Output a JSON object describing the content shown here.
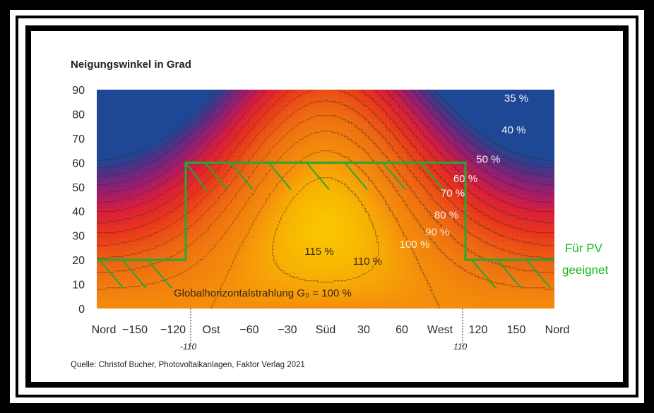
{
  "chart_data": {
    "type": "heatmap",
    "title": "Neigungswinkel in Grad",
    "y_ticks": [
      "90",
      "80",
      "70",
      "60",
      "50",
      "40",
      "30",
      "20",
      "10",
      "0"
    ],
    "x_ticks": [
      "Nord",
      "−150",
      "−120",
      "Ost",
      "−60",
      "−30",
      "Süd",
      "30",
      "60",
      "West",
      "120",
      "150",
      "Nord"
    ],
    "x_tick_values": [
      -180,
      -150,
      -120,
      -90,
      -60,
      -30,
      0,
      30,
      60,
      90,
      120,
      150,
      180
    ],
    "xlim": [
      -180,
      180
    ],
    "ylim": [
      0,
      90
    ],
    "contour_labels": [
      "35 %",
      "40 %",
      "50 %",
      "60 %",
      "70 %",
      "80 %",
      "90 %",
      "100 %",
      "110 %",
      "115 %"
    ],
    "contour_levels": [
      35,
      40,
      50,
      60,
      70,
      80,
      90,
      100,
      110,
      115
    ],
    "baseline_label": "Globalhorizontalstrahlung G₀ = 100 %",
    "suitable_region": {
      "label_line1": "Für PV",
      "label_line2": "geeignet",
      "azimuth_range": [
        -110,
        110
      ],
      "tilt_range_inner": [
        0,
        60
      ],
      "tilt_range_outer": [
        0,
        20
      ],
      "marker_left": "-110",
      "marker_right": "110",
      "color": "#22aa33"
    },
    "source": "Quelle: Christof Bucher, Photovoltaikanlagen, Faktor Verlag 2021",
    "colors": [
      "#f08a0c",
      "#f6b800",
      "#ffe617",
      "#e8261a",
      "#a01c78",
      "#1e4a9a"
    ]
  }
}
